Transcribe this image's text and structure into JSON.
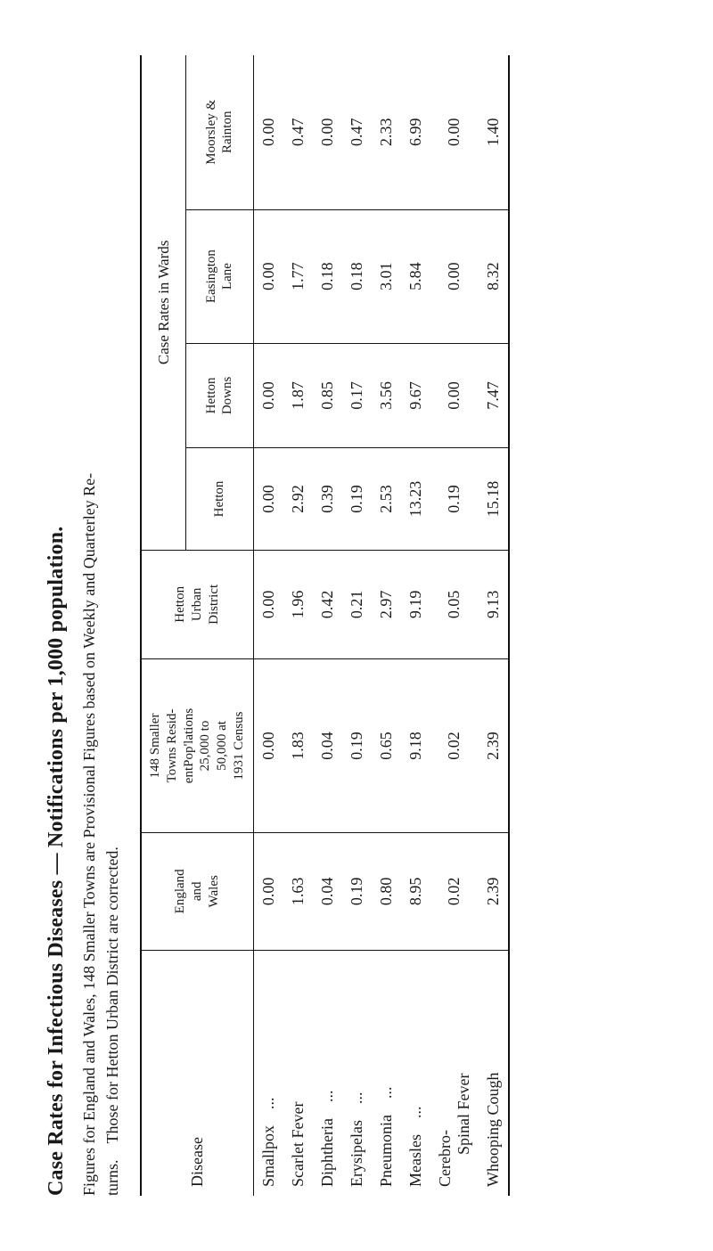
{
  "title": "Case Rates for Infectious Diseases — Notifications per 1,000 population.",
  "subtitle1": "Figures for England and Wales, 148 Smaller Towns are Provisional Figures based on Weekly and Quarterley Re-",
  "subtitle2": "turns. Those for Hetton Urban District are corrected.",
  "headers": {
    "disease": "Disease",
    "england": "England\nand\nWales",
    "smaller": "148 Smaller\nTowns Resid-\nentPop'lations\n25,000 to\n50,000 at\n1931 Census",
    "hettonUD": "Hetton\nUrban\nDistrict",
    "caseRates": "Case Rates in Wards",
    "hetton": "Hetton",
    "downs": "Hetton\nDowns",
    "easington": "Easington\nLane",
    "moorsley": "Moorsley &\nRainton"
  },
  "rows": [
    {
      "d": "Smallpox ...",
      "v": [
        "0.00",
        "0.00",
        "0.00",
        "0.00",
        "0.00",
        "0.00",
        "0.00"
      ]
    },
    {
      "d": "Scarlet Fever",
      "v": [
        "1.63",
        "1.83",
        "1.96",
        "2.92",
        "1.87",
        "1.77",
        "0.47"
      ]
    },
    {
      "d": "Diphtheria ...",
      "v": [
        "0.04",
        "0.04",
        "0.42",
        "0.39",
        "0.85",
        "0.18",
        "0.00"
      ]
    },
    {
      "d": "Erysipelas ...",
      "v": [
        "0.19",
        "0.19",
        "0.21",
        "0.19",
        "0.17",
        "0.18",
        "0.47"
      ]
    },
    {
      "d": "Pneumonia ...",
      "v": [
        "0.80",
        "0.65",
        "2.97",
        "2.53",
        "3.56",
        "3.01",
        "2.33"
      ]
    },
    {
      "d": "Measles ...",
      "v": [
        "8.95",
        "9.18",
        "9.19",
        "13.23",
        "9.67",
        "5.84",
        "6.99"
      ]
    },
    {
      "d": "Cerebro-\n  Spinal Fever",
      "v": [
        "0.02",
        "0.02",
        "0.05",
        "0.19",
        "0.00",
        "0.00",
        "0.00"
      ]
    },
    {
      "d": "Whooping Cough",
      "v": [
        "2.39",
        "2.39",
        "9.13",
        "15.18",
        "7.47",
        "8.32",
        "1.40"
      ]
    }
  ]
}
